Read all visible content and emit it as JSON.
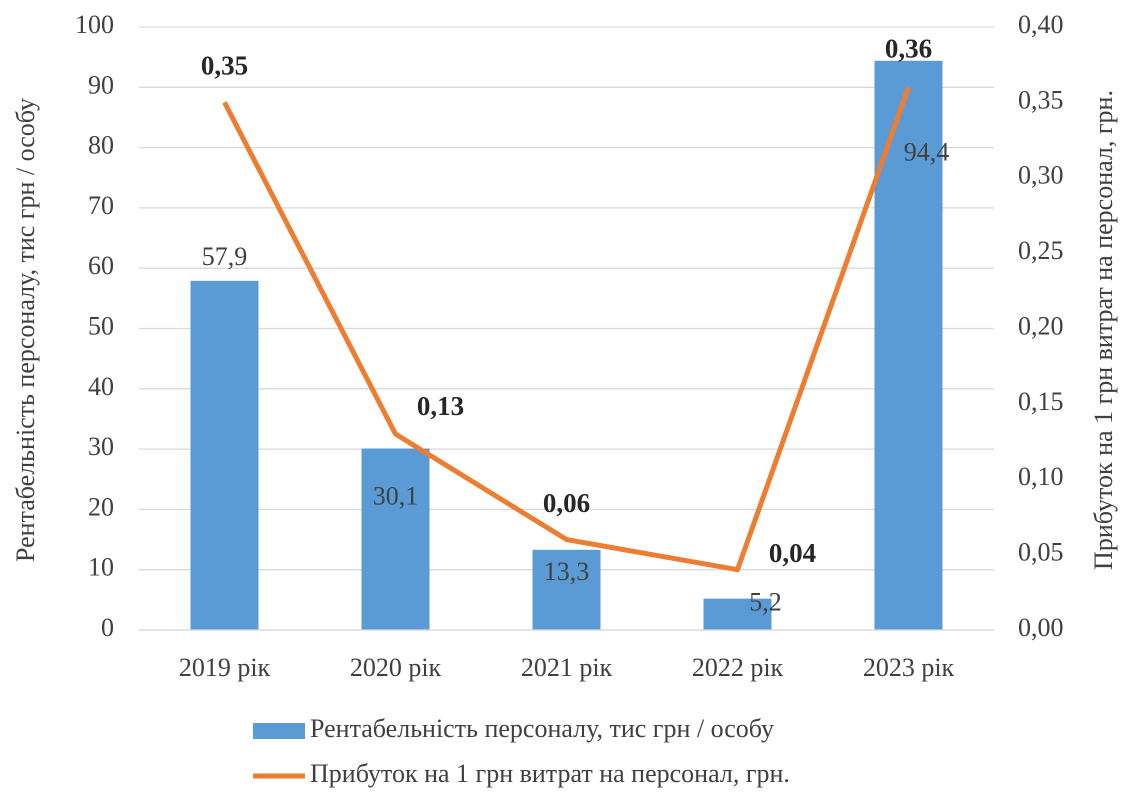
{
  "chart_data": {
    "type": "bar",
    "categories": [
      "2019 рік",
      "2020 рік",
      "2021 рік",
      "2022 рік",
      "2023 рік"
    ],
    "series": [
      {
        "name": "Рентабельність персоналу, тис грн / особу",
        "type": "bar",
        "color": "#5b9bd5",
        "values": [
          57.9,
          30.1,
          13.3,
          5.2,
          94.4
        ],
        "value_labels": [
          "57,9",
          "30,1",
          "13,3",
          "5,2",
          "94,4"
        ]
      },
      {
        "name": "Прибуток на 1 грн витрат на персонал, грн.",
        "type": "line",
        "axis": "y2",
        "color": "#ed7d31",
        "values": [
          0.35,
          0.13,
          0.06,
          0.04,
          0.36
        ],
        "value_labels": [
          "0,35",
          "0,13",
          "0,06",
          "0,04",
          "0,36"
        ]
      }
    ],
    "ylabel": "Рентабельність персоналу, тис грн / особу",
    "y2label": "Прибуток на 1 грн витрат на персонал, грн.",
    "ylim": [
      0,
      100
    ],
    "yticks": [
      0,
      10,
      20,
      30,
      40,
      50,
      60,
      70,
      80,
      90,
      100
    ],
    "y2lim": [
      0,
      0.4
    ],
    "y2ticks": [
      {
        "value": 0,
        "label": "0,00"
      },
      {
        "value": 0.05,
        "label": "0,05"
      },
      {
        "value": 0.1,
        "label": "0,10"
      },
      {
        "value": 0.15,
        "label": "0,15"
      },
      {
        "value": 0.2,
        "label": "0,20"
      },
      {
        "value": 0.25,
        "label": "0,25"
      },
      {
        "value": 0.3,
        "label": "0,30"
      },
      {
        "value": 0.35,
        "label": "0,35"
      },
      {
        "value": 0.4,
        "label": "0,40"
      }
    ],
    "grid": true,
    "legend": "bottom"
  }
}
